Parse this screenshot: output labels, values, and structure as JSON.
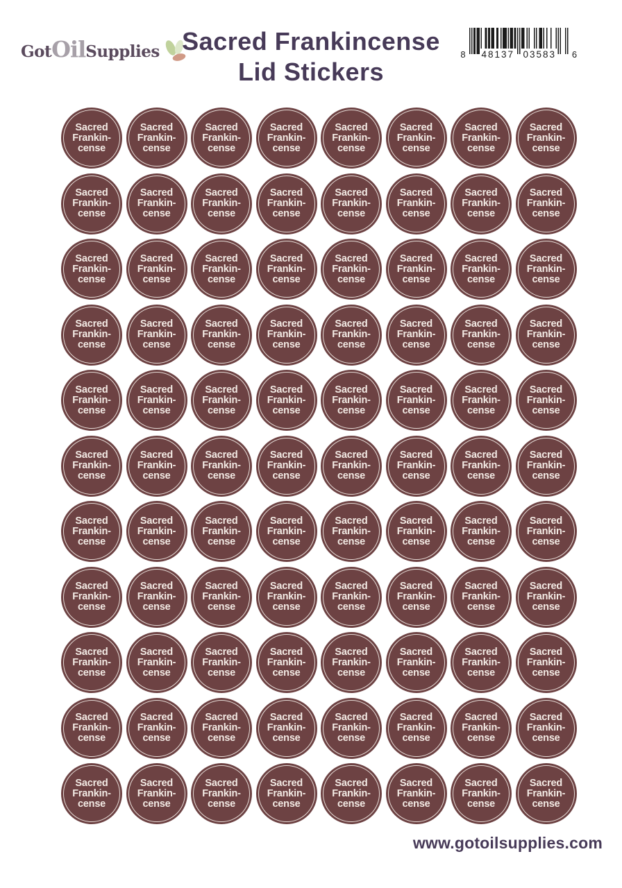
{
  "header": {
    "logo": {
      "part1": "Got",
      "part2": "Oil",
      "part3": "Supplies",
      "color_dark": "#5b4b5e",
      "color_light": "#a7a0a8",
      "icon": "leaves-icon",
      "leaf_colors": [
        "#c0d29c",
        "#dde8ca",
        "#d09a86"
      ]
    },
    "title_line1": "Sacred Frankincense",
    "title_line2": "Lid Stickers",
    "title_color": "#473a58",
    "barcode": {
      "type": "UPC-A",
      "digits": "848137035836",
      "display": {
        "lead": "8",
        "left_group": "48137",
        "right_group": "03583",
        "trail": "6"
      },
      "bar_color": "#1b1b1b"
    }
  },
  "sticker_sheet": {
    "rows": 11,
    "columns": 8,
    "count": 88,
    "label_lines": [
      "Sacred",
      "Frankin-",
      "cense"
    ],
    "sticker_color": "#6d4243",
    "text_color": "#f3eae4",
    "ring_color": "#f1e9e4"
  },
  "footer": {
    "website": "www.gotoilsupplies.com"
  }
}
